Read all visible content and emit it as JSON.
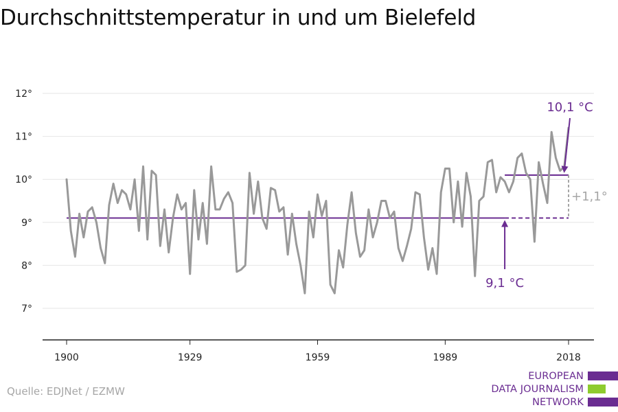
{
  "title": "Durchschnittstemperatur in und um Bielefeld",
  "source": "Quelle: EDJNet / EZMW",
  "logo": {
    "lines": [
      "EUROPEAN",
      "DATA JOURNALISM",
      "NETWORK"
    ],
    "colors": {
      "purple": "#6a2c91",
      "green": "#8ecb2e"
    }
  },
  "colors": {
    "series": "#999999",
    "accent": "#6a2c91",
    "grid": "#e6e6e6",
    "axis": "#222222",
    "delta": "#a6a6a6"
  },
  "chart_data": {
    "type": "line",
    "title": "Durchschnittstemperatur in und um Bielefeld",
    "xlabel": "",
    "ylabel": "",
    "xlim": [
      1900,
      2018
    ],
    "ylim": [
      7,
      12
    ],
    "x_ticks": [
      1900,
      1929,
      1959,
      1989,
      2018
    ],
    "y_ticks": [
      7,
      8,
      9,
      10,
      11,
      12
    ],
    "y_tick_labels": [
      "7°",
      "8°",
      "9°",
      "10°",
      "11°",
      "12°"
    ],
    "grid": "horizontal",
    "series": [
      {
        "x": [
          1900,
          1901,
          1902,
          1903,
          1904,
          1905,
          1906,
          1907,
          1908,
          1909,
          1910,
          1911,
          1912,
          1913,
          1914,
          1915,
          1916,
          1917,
          1918,
          1919,
          1920,
          1921,
          1922,
          1923,
          1924,
          1925,
          1926,
          1927,
          1928,
          1929,
          1930,
          1931,
          1932,
          1933,
          1934,
          1935,
          1936,
          1937,
          1938,
          1939,
          1940,
          1941,
          1942,
          1943,
          1944,
          1945,
          1946,
          1947,
          1948,
          1949,
          1950,
          1951,
          1952,
          1953,
          1954,
          1955,
          1956,
          1957,
          1958,
          1959,
          1960,
          1961,
          1962,
          1963,
          1964,
          1965,
          1966,
          1967,
          1968,
          1969,
          1970,
          1971,
          1972,
          1973,
          1974,
          1975,
          1976,
          1977,
          1978,
          1979,
          1980,
          1981,
          1982,
          1983,
          1984,
          1985,
          1986,
          1987,
          1988,
          1989,
          1990,
          1991,
          1992,
          1993,
          1994,
          1995,
          1996,
          1997,
          1998,
          1999,
          2000,
          2001,
          2002,
          2003,
          2004,
          2005,
          2006,
          2007,
          2008,
          2009,
          2010,
          2011,
          2012,
          2013,
          2014,
          2015,
          2016,
          2017,
          2018
        ],
        "values": [
          10.0,
          8.8,
          8.2,
          9.2,
          8.65,
          9.25,
          9.35,
          9.0,
          8.4,
          8.05,
          9.4,
          9.9,
          9.45,
          9.75,
          9.65,
          9.3,
          10.0,
          8.8,
          10.3,
          8.6,
          10.2,
          10.1,
          8.45,
          9.3,
          8.3,
          9.1,
          9.65,
          9.3,
          9.45,
          7.8,
          9.75,
          8.6,
          9.45,
          8.5,
          10.3,
          9.3,
          9.3,
          9.55,
          9.7,
          9.45,
          7.85,
          7.9,
          8.0,
          10.15,
          9.2,
          9.95,
          9.1,
          8.85,
          9.8,
          9.75,
          9.25,
          9.35,
          8.25,
          9.2,
          8.5,
          8.0,
          7.35,
          9.25,
          8.65,
          9.65,
          9.15,
          9.5,
          7.55,
          7.35,
          8.35,
          7.95,
          8.95,
          9.7,
          8.75,
          8.2,
          8.35,
          9.3,
          8.65,
          9.0,
          9.5,
          9.5,
          9.1,
          9.25,
          8.4,
          8.1,
          8.45,
          8.85,
          9.7,
          9.65,
          8.65,
          7.9,
          8.4,
          7.8,
          9.7,
          10.25,
          10.25,
          9.0,
          9.95,
          8.9,
          10.15,
          9.6,
          7.75,
          9.5,
          9.6,
          10.4,
          10.45,
          9.7,
          10.05,
          9.95,
          9.7,
          9.95,
          10.5,
          10.6,
          10.15,
          10.0,
          8.55,
          10.4,
          9.9,
          9.45,
          11.1,
          10.5,
          10.2,
          10.3,
          11.2
        ]
      }
    ],
    "annotations": {
      "baseline": {
        "value": 9.1,
        "from": 1900,
        "to": 2003,
        "dashed_to": 2018,
        "label": "9,1 °C",
        "arrow_x": 2003
      },
      "recent": {
        "value": 10.1,
        "from": 2003,
        "to": 2018,
        "label": "10,1 °C"
      },
      "difference": {
        "label": "+1,1°",
        "x": 2018
      }
    }
  }
}
